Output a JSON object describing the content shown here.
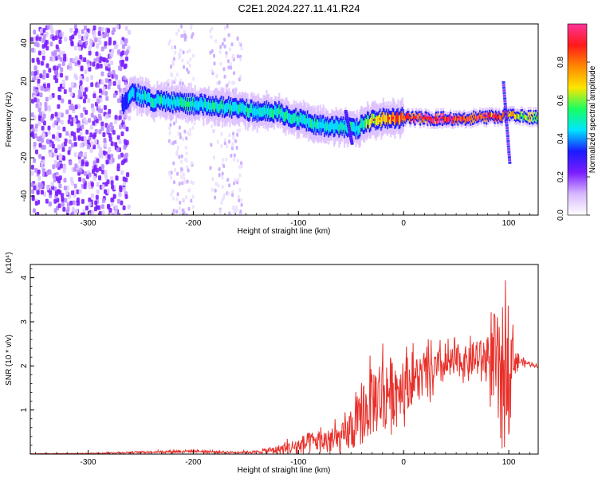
{
  "title": "C2E1.2024.227.11.41.R24",
  "colors": {
    "snr_line": "#e8302a",
    "spectrogram_colormap": [
      "#ffffff",
      "#d8b8ff",
      "#7a1dff",
      "#1a1aff",
      "#00e5ff",
      "#18ff60",
      "#ffe600",
      "#ff8800",
      "#ff1a1a",
      "#ff3399"
    ]
  },
  "colorbar": {
    "label": "Normalized spectral amplitude",
    "range": [
      0.0,
      1.0
    ],
    "ticks": [
      0.0,
      0.2,
      0.4,
      0.6,
      0.8
    ],
    "tick_labels": [
      "0.0",
      "0.2",
      "0.4",
      "0.6",
      "0.8"
    ]
  },
  "chart_data": [
    {
      "type": "heatmap",
      "xlabel": "Height of straight line (km)",
      "ylabel": "Frequency (Hz)",
      "xlim": [
        -355,
        128
      ],
      "ylim": [
        -50,
        50
      ],
      "x_ticks": [
        -300,
        -200,
        -100,
        0,
        100
      ],
      "x_tick_labels": [
        "-300",
        "-200",
        "-100",
        "0",
        "100"
      ],
      "y_ticks": [
        -40,
        -20,
        0,
        20,
        40
      ],
      "y_tick_labels": [
        "-40",
        "-20",
        "0",
        "20",
        "40"
      ],
      "ridge": {
        "x": [
          -268,
          -258,
          -240,
          -220,
          -200,
          -180,
          -160,
          -140,
          -120,
          -100,
          -80,
          -60,
          -45,
          -35,
          -25,
          0,
          25,
          50,
          75,
          95,
          110,
          128
        ],
        "y": [
          8,
          14,
          10,
          9,
          8,
          7,
          6,
          4,
          4,
          0,
          -3,
          -4,
          -5,
          -1,
          0,
          1,
          0.5,
          0.5,
          1,
          2,
          1.5,
          1
        ],
        "amplitude": [
          0.35,
          0.45,
          0.5,
          0.5,
          0.5,
          0.5,
          0.48,
          0.52,
          0.5,
          0.5,
          0.5,
          0.5,
          0.45,
          0.6,
          0.7,
          0.9,
          0.95,
          0.95,
          0.9,
          0.85,
          0.7,
          0.6
        ]
      },
      "noise_regions": [
        {
          "x": [
            -355,
            -262
          ],
          "amplitude": 0.15,
          "density": "high"
        },
        {
          "x": [
            -225,
            -200
          ],
          "amplitude": 0.05,
          "density": "low"
        },
        {
          "x": [
            -185,
            -155
          ],
          "amplitude": 0.05,
          "density": "low"
        }
      ],
      "spike_features": [
        {
          "x": -55,
          "y": [
            5,
            -12
          ]
        },
        {
          "x": 95,
          "y": [
            20,
            -22
          ]
        }
      ]
    },
    {
      "type": "line",
      "xlabel": "Height of straight line (km)",
      "ylabel": "SNR (10 * v/v)",
      "y_scale_label": "(x10⁴)",
      "xlim": [
        -355,
        128
      ],
      "ylim": [
        0,
        4.3
      ],
      "x_ticks": [
        -300,
        -200,
        -100,
        0,
        100
      ],
      "x_tick_labels": [
        "-300",
        "-200",
        "-100",
        "0",
        "100"
      ],
      "y_ticks": [
        1,
        2,
        3,
        4
      ],
      "y_tick_labels": [
        "1",
        "2",
        "3",
        "4"
      ],
      "series": [
        {
          "x": [
            -355,
            -320,
            -290,
            -260,
            -240,
            -220,
            -200,
            -180,
            -160,
            -140,
            -120,
            -100,
            -90,
            -80,
            -70,
            -60,
            -50,
            -40,
            -30,
            -20,
            -10,
            0,
            10,
            20,
            30,
            40,
            50,
            60,
            70,
            80,
            88,
            93,
            97,
            100,
            104,
            110,
            120,
            128
          ],
          "values": [
            0.01,
            0.01,
            0.02,
            0.04,
            0.05,
            0.06,
            0.07,
            0.05,
            0.04,
            0.05,
            0.1,
            0.18,
            0.25,
            0.3,
            0.3,
            0.35,
            0.5,
            0.8,
            1.2,
            1.4,
            1.5,
            1.55,
            1.7,
            1.8,
            1.9,
            2.0,
            2.1,
            2.1,
            2.15,
            2.2,
            2.0,
            1.4,
            2.4,
            2.3,
            2.2,
            2.1,
            2.05,
            2.0
          ],
          "variability": [
            0.005,
            0.005,
            0.01,
            0.02,
            0.02,
            0.03,
            0.03,
            0.03,
            0.02,
            0.03,
            0.1,
            0.2,
            0.25,
            0.25,
            0.3,
            0.3,
            0.45,
            0.6,
            0.8,
            0.9,
            0.7,
            0.6,
            0.55,
            0.5,
            0.45,
            0.4,
            0.35,
            0.35,
            0.4,
            0.5,
            1.2,
            1.6,
            1.8,
            1.2,
            0.5,
            0.1,
            0.05,
            0.05
          ]
        }
      ]
    }
  ]
}
